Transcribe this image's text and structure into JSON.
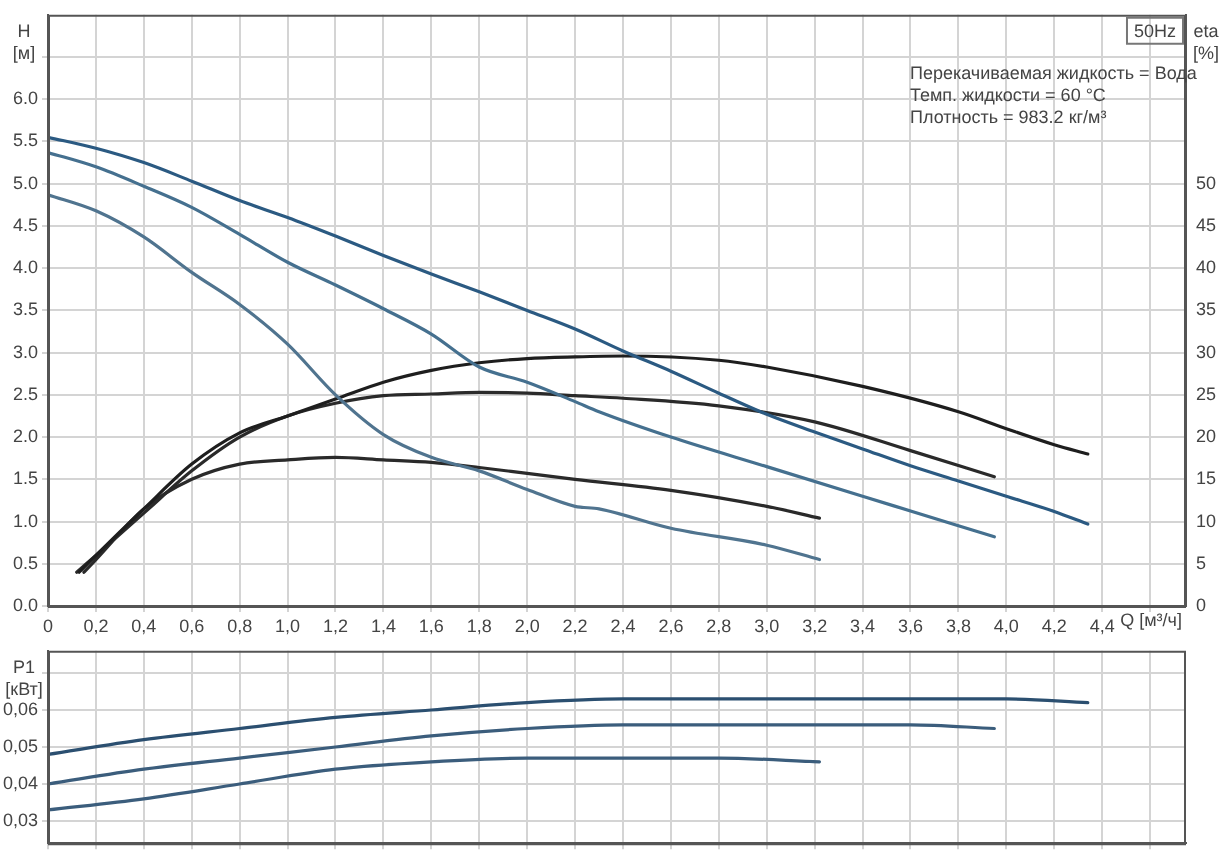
{
  "chart_data": [
    {
      "type": "line",
      "ylabel": "H [м]",
      "y2label": "eta [%]",
      "xlabel": "Q [м³/ч]",
      "annotations": [
        "50Hz",
        "Перекачиваемая жидкость = Вода",
        "Темп. жидкости = 60 °C",
        "Плотность = 983.2 кг/м³"
      ],
      "xlim": [
        0,
        4.75
      ],
      "xticks": [
        {
          "value": 0,
          "label": "0"
        },
        {
          "value": 0.2,
          "label": "0,2"
        },
        {
          "value": 0.4,
          "label": "0,4"
        },
        {
          "value": 0.6,
          "label": "0,6"
        },
        {
          "value": 0.8,
          "label": "0,8"
        },
        {
          "value": 1.0,
          "label": "1,0"
        },
        {
          "value": 1.2,
          "label": "1,2"
        },
        {
          "value": 1.4,
          "label": "1,4"
        },
        {
          "value": 1.6,
          "label": "1,6"
        },
        {
          "value": 1.8,
          "label": "1,8"
        },
        {
          "value": 2.0,
          "label": "2,0"
        },
        {
          "value": 2.2,
          "label": "2,2"
        },
        {
          "value": 2.4,
          "label": "2,4"
        },
        {
          "value": 2.6,
          "label": "2,6"
        },
        {
          "value": 2.8,
          "label": "2,8"
        },
        {
          "value": 3.0,
          "label": "3,0"
        },
        {
          "value": 3.2,
          "label": "3,2"
        },
        {
          "value": 3.4,
          "label": "3,4"
        },
        {
          "value": 3.6,
          "label": "3,6"
        },
        {
          "value": 3.8,
          "label": "3,8"
        },
        {
          "value": 4.0,
          "label": "4,0"
        },
        {
          "value": 4.2,
          "label": "4,2"
        },
        {
          "value": 4.4,
          "label": "4,4"
        },
        {
          "value": 4.6,
          "label": null
        }
      ],
      "ylim": [
        0,
        7.0
      ],
      "yticks": [
        {
          "value": 0,
          "label": "0.0"
        },
        {
          "value": 0.5,
          "label": "0.5"
        },
        {
          "value": 1.0,
          "label": "1.0"
        },
        {
          "value": 1.5,
          "label": "1.5"
        },
        {
          "value": 2.0,
          "label": "2.0"
        },
        {
          "value": 2.5,
          "label": "2.5"
        },
        {
          "value": 3.0,
          "label": "3.0"
        },
        {
          "value": 3.5,
          "label": "3.5"
        },
        {
          "value": 4.0,
          "label": "4.0"
        },
        {
          "value": 4.5,
          "label": "4.5"
        },
        {
          "value": 5.0,
          "label": "5.0"
        },
        {
          "value": 5.5,
          "label": "5.5"
        },
        {
          "value": 6.0,
          "label": "6.0"
        },
        {
          "value": 6.5,
          "label": null
        }
      ],
      "y2lim": [
        0,
        70
      ],
      "y2ticks": [
        0,
        5,
        10,
        15,
        20,
        25,
        30,
        35,
        40,
        45,
        50
      ],
      "grid": true,
      "legend": false,
      "series": [
        {
          "color": "#2b5a82",
          "x": [
            0,
            0.2,
            0.4,
            0.6,
            0.8,
            1.0,
            1.2,
            1.4,
            1.6,
            1.8,
            2.0,
            2.2,
            2.4,
            2.6,
            2.8,
            3.0,
            3.2,
            3.4,
            3.6,
            3.8,
            4.0,
            4.2,
            4.34
          ],
          "values": [
            5.55,
            5.42,
            5.25,
            5.03,
            4.8,
            4.6,
            4.38,
            4.15,
            3.93,
            3.72,
            3.5,
            3.28,
            3.02,
            2.78,
            2.52,
            2.27,
            2.06,
            1.86,
            1.66,
            1.48,
            1.3,
            1.12,
            0.97
          ]
        },
        {
          "color": "#45708f",
          "x": [
            0,
            0.2,
            0.4,
            0.6,
            0.8,
            1.0,
            1.2,
            1.4,
            1.6,
            1.8,
            2.0,
            2.2,
            2.3,
            2.6,
            3.0,
            3.4,
            3.8,
            3.95
          ],
          "values": [
            5.37,
            5.2,
            4.97,
            4.72,
            4.4,
            4.07,
            3.8,
            3.52,
            3.22,
            2.83,
            2.65,
            2.42,
            2.3,
            2.0,
            1.65,
            1.3,
            0.95,
            0.82
          ]
        },
        {
          "color": "#50748f",
          "x": [
            0,
            0.2,
            0.4,
            0.6,
            0.8,
            1.0,
            1.2,
            1.4,
            1.6,
            1.8,
            2.0,
            2.2,
            2.3,
            2.6,
            3.0,
            3.22
          ],
          "values": [
            4.87,
            4.68,
            4.37,
            3.95,
            3.57,
            3.1,
            2.5,
            2.03,
            1.76,
            1.6,
            1.38,
            1.18,
            1.15,
            0.92,
            0.72,
            0.55
          ]
        },
        {
          "color": "#1e1e1e",
          "axis": "y2",
          "x": [
            0.13,
            0.2,
            0.4,
            0.6,
            0.8,
            1.0,
            1.2,
            1.4,
            1.6,
            1.8,
            2.0,
            2.2,
            2.4,
            2.8,
            3.0,
            3.4,
            3.8,
            4.0,
            4.2,
            4.34
          ],
          "values": [
            4,
            6,
            11.5,
            16.8,
            20.5,
            22.5,
            24.5,
            26.5,
            27.9,
            28.8,
            29.3,
            29.5,
            29.6,
            29.1,
            28.3,
            26,
            23,
            21,
            19.1,
            18
          ]
        },
        {
          "color": "#2a2a2a",
          "axis": "y2",
          "x": [
            0.12,
            0.2,
            0.4,
            0.6,
            0.8,
            1.0,
            1.2,
            1.4,
            1.6,
            1.8,
            2.0,
            2.2,
            2.4,
            2.8,
            3.2,
            3.6,
            3.95
          ],
          "values": [
            4,
            6,
            11,
            16,
            20,
            22.5,
            24,
            24.9,
            25.1,
            25.3,
            25.2,
            24.9,
            24.6,
            23.7,
            21.8,
            18.4,
            15.3
          ]
        },
        {
          "color": "#2a2a2a",
          "axis": "y2",
          "x": [
            0.15,
            0.2,
            0.4,
            0.6,
            0.8,
            1.0,
            1.2,
            1.4,
            1.6,
            1.8,
            2.0,
            2.2,
            2.6,
            3.0,
            3.22
          ],
          "values": [
            4,
            5.5,
            11.5,
            15,
            16.8,
            17.3,
            17.6,
            17.3,
            17,
            16.4,
            15.7,
            15,
            13.7,
            11.8,
            10.4
          ]
        }
      ]
    },
    {
      "type": "line",
      "ylabel": "P1 [кВт]",
      "tick_labels": "y",
      "xlim": [
        0,
        4.75
      ],
      "xticks": [
        0,
        0.2,
        0.4,
        0.6,
        0.8,
        1.0,
        1.2,
        1.4,
        1.6,
        1.8,
        2.0,
        2.2,
        2.4,
        2.6,
        2.8,
        3.0,
        3.2,
        3.4,
        3.6,
        3.8,
        4.0,
        4.2,
        4.4,
        4.6
      ],
      "ylim": [
        0.024,
        0.076
      ],
      "yticks": [
        {
          "value": 0.03,
          "label": "0,03"
        },
        {
          "value": 0.04,
          "label": "0,04"
        },
        {
          "value": 0.05,
          "label": "0,05"
        },
        {
          "value": 0.06,
          "label": "0,06"
        },
        {
          "value": 0.07,
          "label": null
        }
      ],
      "grid": true,
      "legend": false,
      "series": [
        {
          "color": "#2b4f70",
          "x": [
            0,
            0.4,
            0.8,
            1.2,
            1.6,
            2.0,
            2.4,
            2.8,
            3.2,
            3.6,
            4.0,
            4.34
          ],
          "values": [
            0.048,
            0.052,
            0.055,
            0.058,
            0.06,
            0.062,
            0.063,
            0.063,
            0.063,
            0.063,
            0.063,
            0.062
          ]
        },
        {
          "color": "#3b5d7c",
          "x": [
            0,
            0.4,
            0.8,
            1.2,
            1.6,
            2.0,
            2.4,
            2.8,
            3.2,
            3.6,
            3.95
          ],
          "values": [
            0.04,
            0.044,
            0.047,
            0.05,
            0.053,
            0.055,
            0.056,
            0.056,
            0.056,
            0.056,
            0.055
          ]
        },
        {
          "color": "#3b5d7c",
          "x": [
            0,
            0.4,
            0.8,
            1.2,
            1.6,
            2.0,
            2.4,
            2.8,
            3.22
          ],
          "values": [
            0.033,
            0.036,
            0.04,
            0.044,
            0.046,
            0.047,
            0.047,
            0.047,
            0.046
          ]
        }
      ]
    }
  ]
}
